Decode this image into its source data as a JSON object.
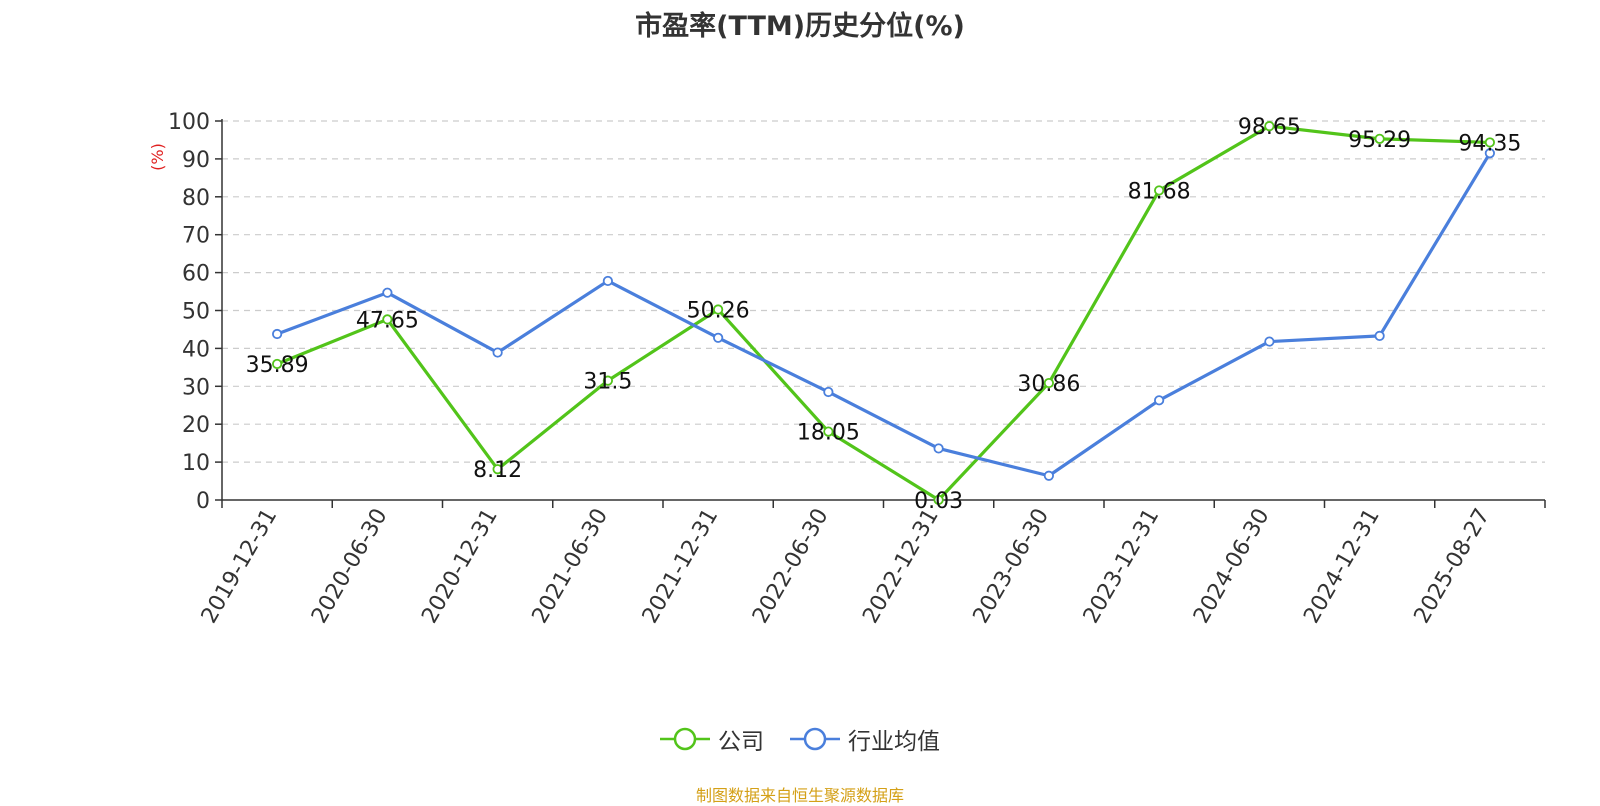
{
  "chart_data": {
    "type": "line",
    "title": "市盈率(TTM)历史分位(%)",
    "ylabel": "(%)",
    "xlabel": "",
    "ylim": [
      0,
      100
    ],
    "yticks": [
      0,
      10,
      20,
      30,
      40,
      50,
      60,
      70,
      80,
      90,
      100
    ],
    "categories": [
      "2019-12-31",
      "2020-06-30",
      "2020-12-31",
      "2021-06-30",
      "2021-12-31",
      "2022-06-30",
      "2022-12-31",
      "2023-06-30",
      "2023-12-31",
      "2024-06-30",
      "2024-12-31",
      "2025-08-27"
    ],
    "grid": true,
    "legend_position": "bottom",
    "series": [
      {
        "name": "公司",
        "color": "#52c41a",
        "show_labels": true,
        "values": [
          35.89,
          47.65,
          8.12,
          31.5,
          50.26,
          18.05,
          0.03,
          30.86,
          81.68,
          98.65,
          95.29,
          94.35
        ]
      },
      {
        "name": "行业均值",
        "color": "#4a7fdc",
        "show_labels": false,
        "values": [
          43.8,
          54.7,
          38.9,
          57.8,
          42.8,
          28.5,
          13.6,
          6.4,
          26.3,
          41.8,
          43.3,
          91.5
        ]
      }
    ]
  },
  "footer": "制图数据来自恒生聚源数据库"
}
